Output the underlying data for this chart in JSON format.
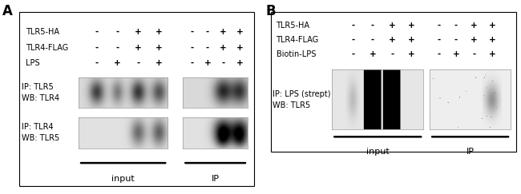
{
  "panel_A": {
    "label": "A",
    "row_labels": [
      "TLR5-HA",
      "TLR4-FLAG",
      "LPS"
    ],
    "signs_input": [
      [
        "-",
        "-",
        "+",
        "+"
      ],
      [
        "-",
        "-",
        "+",
        "+"
      ],
      [
        "-",
        "+",
        "-",
        "+"
      ]
    ],
    "signs_ip": [
      [
        "-",
        "-",
        "+",
        "+"
      ],
      [
        "-",
        "-",
        "+",
        "+"
      ],
      [
        "-",
        "+",
        "-",
        "+"
      ]
    ],
    "blot1_label": "IP: TLR5\nWB: TLR4",
    "blot2_label": "IP: TLR4\nWB: TLR5",
    "xlabel_input": "input",
    "xlabel_ip": "IP"
  },
  "panel_B": {
    "label": "B",
    "row_labels": [
      "TLR5-HA",
      "TLR4-FLAG",
      "Biotin-LPS"
    ],
    "signs_input": [
      [
        "-",
        "-",
        "+",
        "+"
      ],
      [
        "-",
        "-",
        "+",
        "+"
      ],
      [
        "-",
        "+",
        "-",
        "+"
      ]
    ],
    "signs_ip": [
      [
        "-",
        "-",
        "+",
        "+"
      ],
      [
        "-",
        "-",
        "+",
        "+"
      ],
      [
        "-",
        "+",
        "-",
        "+"
      ]
    ],
    "blot_label": "IP: LPS (strept)\nWB: TLR5",
    "xlabel_input": "input",
    "xlabel_ip": "IP"
  },
  "figure": {
    "bg_color": "#ffffff",
    "sign_fontsize": 7.5,
    "label_fontsize": 7,
    "rowlabel_fontsize": 7,
    "section_fontsize": 8,
    "panel_fontsize": 12
  }
}
